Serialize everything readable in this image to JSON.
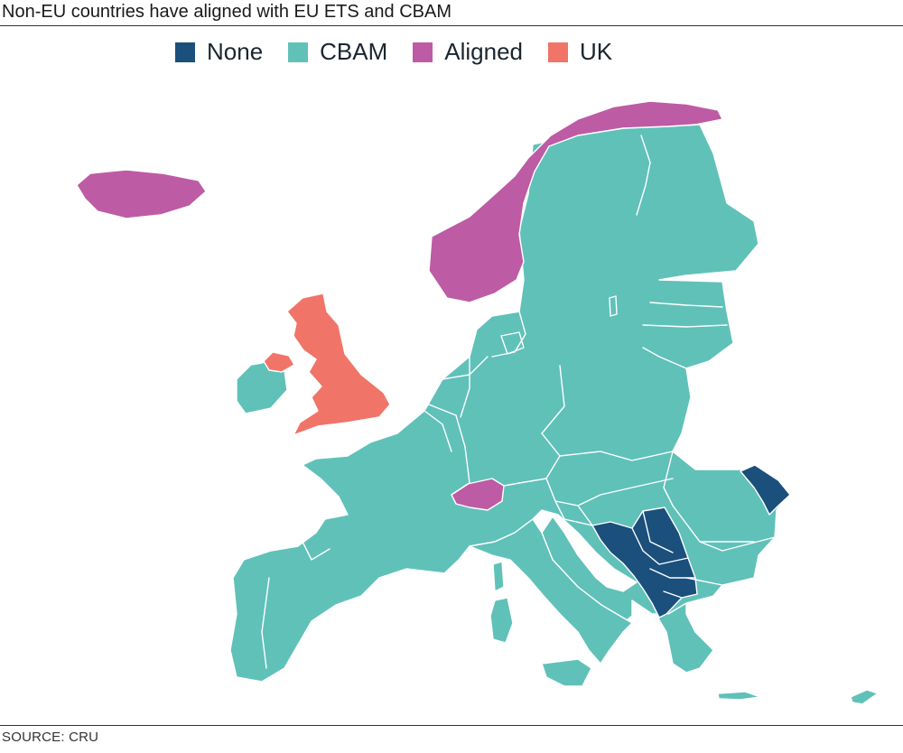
{
  "title": "Non-EU countries have aligned with EU ETS and CBAM",
  "source": "SOURCE: CRU",
  "colors": {
    "none": "#1b4f7c",
    "cbam": "#60c1b9",
    "aligned": "#bd5ba5",
    "uk": "#f07468"
  },
  "legend": [
    {
      "key": "none",
      "label": "None"
    },
    {
      "key": "cbam",
      "label": "CBAM"
    },
    {
      "key": "aligned",
      "label": "Aligned"
    },
    {
      "key": "uk",
      "label": "UK"
    }
  ],
  "map": {
    "country_groups": {
      "aligned": [
        "Norway",
        "Iceland",
        "Switzerland"
      ],
      "uk": [
        "United Kingdom",
        "Northern Ireland"
      ],
      "none": [
        "Moldova",
        "Bosnia and Herzegovina",
        "Serbia",
        "Montenegro",
        "Kosovo",
        "North Macedonia",
        "Albania"
      ],
      "cbam": [
        "Ireland",
        "Portugal",
        "Spain",
        "France",
        "Belgium",
        "Netherlands",
        "Luxembourg",
        "Germany",
        "Denmark",
        "Sweden",
        "Finland",
        "Estonia",
        "Latvia",
        "Lithuania",
        "Poland",
        "Czechia",
        "Slovakia",
        "Austria",
        "Hungary",
        "Slovenia",
        "Croatia",
        "Italy",
        "Romania",
        "Bulgaria",
        "Greece",
        "Cyprus",
        "Malta"
      ]
    }
  }
}
